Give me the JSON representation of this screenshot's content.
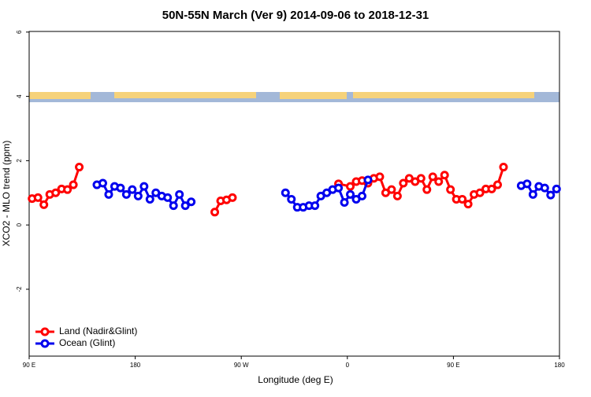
{
  "chart_data": {
    "type": "line",
    "title": "50N-55N March (Ver 9)   2014-09-06 to 2018-12-31",
    "x_label": "Longitude (deg E)",
    "y_label": "XCO2 - MLO trend (ppm)",
    "xlim": [
      90,
      540
    ],
    "ylim": [
      -4.08,
      6.02
    ],
    "xticks": [
      {
        "value": 90,
        "label": "90 E"
      },
      180,
      {
        "value": 270,
        "label": "90 W"
      },
      {
        "value": 360,
        "label": "0"
      },
      {
        "value": 450,
        "label": "90 E"
      },
      {
        "value": 540,
        "label": "180"
      }
    ],
    "yticks": [
      -2,
      0,
      2,
      4,
      6
    ],
    "legend": "bottom-left",
    "series": [
      {
        "name": "Land (Nadir&Glint)",
        "color": "#ff0000",
        "x": [
          92.5,
          97.5,
          102.5,
          107.5,
          112.5,
          117.5,
          122.5,
          127.5,
          132.5,
          null,
          247.5,
          252.5,
          257.5,
          262.5,
          null,
          352.5,
          362.5,
          367.5,
          372.5,
          377.5,
          382.5,
          387.5,
          392.5,
          397.5,
          402.5,
          407.5,
          412.5,
          417.5,
          422.5,
          427.5,
          432.5,
          437.5,
          442.5,
          447.5,
          452.5,
          457.5,
          462.5,
          467.5,
          472.5,
          477.5,
          482.5,
          487.5,
          492.5
        ],
        "values": [
          0.82,
          0.85,
          0.63,
          0.95,
          1.0,
          1.12,
          1.1,
          1.25,
          1.8,
          null,
          0.4,
          0.75,
          0.78,
          0.85,
          null,
          1.28,
          1.2,
          1.35,
          1.38,
          1.3,
          1.45,
          1.5,
          1.0,
          1.1,
          0.9,
          1.3,
          1.45,
          1.35,
          1.45,
          1.1,
          1.5,
          1.35,
          1.55,
          1.1,
          0.8,
          0.8,
          0.65,
          0.95,
          1.0,
          1.12,
          1.12,
          1.25,
          1.8
        ]
      },
      {
        "name": "Ocean (Glint)",
        "color": "#0000ee",
        "x": [
          147.5,
          152.5,
          157.5,
          162.5,
          167.5,
          172.5,
          177.5,
          182.5,
          187.5,
          192.5,
          197.5,
          202.5,
          207.5,
          212.5,
          217.5,
          222.5,
          227.5,
          null,
          307.5,
          312.5,
          317.5,
          322.5,
          327.5,
          332.5,
          337.5,
          342.5,
          347.5,
          352.5,
          357.5,
          362.5,
          367.5,
          372.5,
          377.5,
          null,
          507.5,
          512.5,
          517.5,
          522.5,
          527.5,
          532.5,
          537.5
        ],
        "values": [
          1.25,
          1.3,
          0.95,
          1.2,
          1.15,
          0.95,
          1.1,
          0.9,
          1.2,
          0.8,
          1.0,
          0.9,
          0.85,
          0.6,
          0.95,
          0.6,
          0.72,
          null,
          1.0,
          0.8,
          0.55,
          0.55,
          0.6,
          0.6,
          0.9,
          1.0,
          1.1,
          1.15,
          0.7,
          0.95,
          0.8,
          0.9,
          1.4,
          null,
          1.22,
          1.28,
          0.95,
          1.2,
          1.15,
          0.93,
          1.12
        ]
      }
    ]
  }
}
